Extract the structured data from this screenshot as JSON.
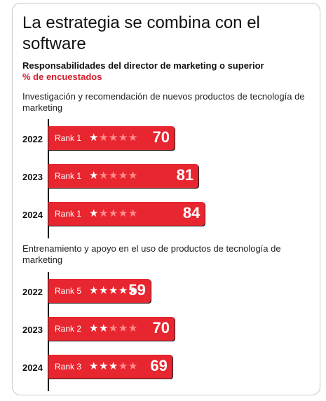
{
  "title": "La estrategia se combina con el software",
  "subtitle": "Responsabilidades del director de marketing o superior",
  "unit": "% de encuestados",
  "chart_data": [
    {
      "type": "bar",
      "title": "Investigación y recomendación de nuevos productos de tecnología de marketing",
      "categories": [
        "2022",
        "2023",
        "2024"
      ],
      "values": [
        70,
        81,
        84
      ],
      "ranks": [
        "Rank 1",
        "Rank 1",
        "Rank 1"
      ],
      "stars": [
        1,
        1,
        1
      ],
      "stars_max": 5,
      "xlim": [
        0,
        100
      ]
    },
    {
      "type": "bar",
      "title": "Entrenamiento y apoyo en el uso de productos de tecnología de marketing",
      "categories": [
        "2022",
        "2023",
        "2024"
      ],
      "values": [
        59,
        70,
        69
      ],
      "ranks": [
        "Rank 5",
        "Rank 2",
        "Rank 3"
      ],
      "stars": [
        5,
        2,
        3
      ],
      "stars_max": 5,
      "xlim": [
        0,
        100
      ]
    }
  ],
  "colors": {
    "bar": "#e8262f",
    "accent": "#d21e2b",
    "star_on": "#ffffff",
    "star_off": "#ff8c8f"
  }
}
